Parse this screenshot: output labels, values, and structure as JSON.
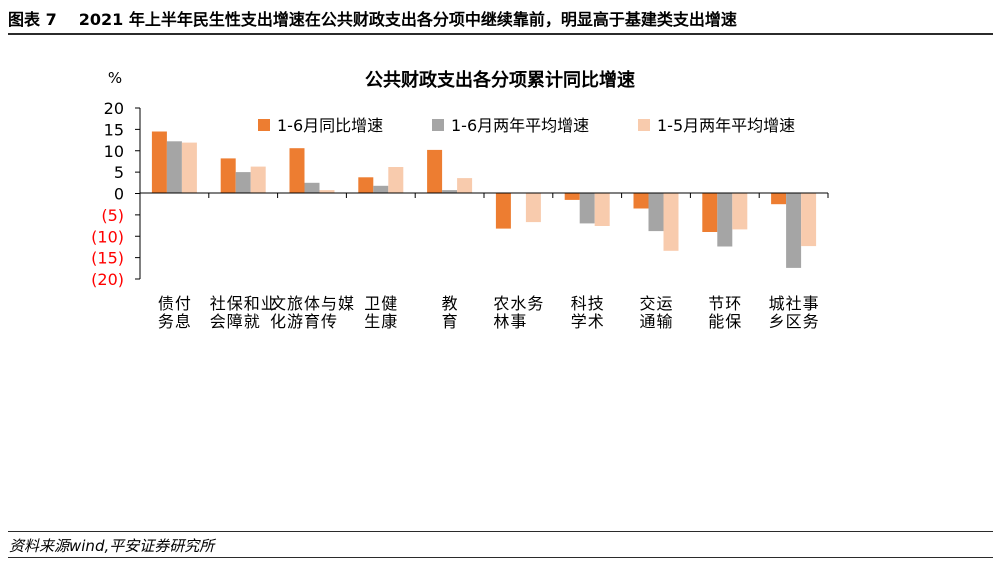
{
  "figure": {
    "label": "图表 7",
    "caption": "2021 年上半年民生性支出增速在公共财政支出各分项中继续靠前，明显高于基建类支出增速",
    "source": "资料来源wind,平安证券研究所"
  },
  "colors": {
    "series1": "#ED7D31",
    "series2": "#A5A5A5",
    "series3": "#F8CBAD",
    "negative_tick": "#FF0000",
    "axis": "#000000"
  },
  "chart_data": {
    "type": "bar",
    "title": "公共财政支出各分项累计同比增速",
    "ylabel": "%",
    "ylim": [
      -20,
      20
    ],
    "yticks": [
      20,
      15,
      10,
      5,
      0,
      -5,
      -10,
      -15,
      -20
    ],
    "ytick_labels": [
      "20",
      "15",
      "10",
      "5",
      "0",
      "(5)",
      "(10)",
      "(15)",
      "(20)"
    ],
    "legend_position": "top-right",
    "categories": [
      "债务付息",
      "社会保障和就业",
      "文化旅游体育与传媒",
      "卫生健康",
      "教育",
      "农林水事务",
      "科学技术",
      "交通运输",
      "节能环保",
      "城乡社区事务"
    ],
    "series": [
      {
        "name": "1-6月同比增速",
        "values": [
          14.5,
          8.2,
          10.6,
          3.8,
          10.2,
          -8.2,
          -1.5,
          -3.5,
          -9.0,
          -2.5
        ]
      },
      {
        "name": "1-6月两年平均增速",
        "values": [
          12.2,
          5.0,
          2.5,
          1.8,
          0.8,
          0.0,
          -7.0,
          -8.8,
          -12.4,
          -17.4
        ]
      },
      {
        "name": "1-5月两年平均增速",
        "values": [
          11.9,
          6.3,
          0.8,
          6.2,
          3.6,
          -6.7,
          -7.6,
          -13.4,
          -8.4,
          -12.3
        ]
      }
    ]
  }
}
